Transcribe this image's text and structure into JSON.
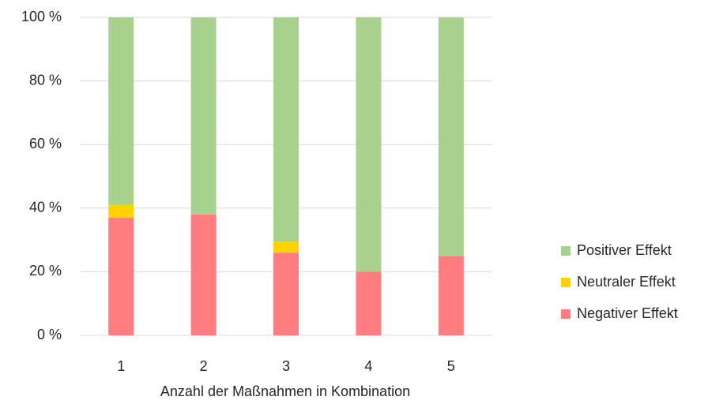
{
  "chart_data": {
    "type": "stacked_bar",
    "x_label": "Anzahl der Maßnahmen in Kombination",
    "categories": [
      "1",
      "2",
      "3",
      "4",
      "5"
    ],
    "series": [
      {
        "name": "Negativer Effekt",
        "color": "#ff7c80",
        "values": [
          37,
          38,
          26,
          20,
          25
        ]
      },
      {
        "name": "Neutraler Effekt",
        "color": "#ffd200",
        "values": [
          4,
          0,
          3.5,
          0,
          0
        ]
      },
      {
        "name": "Positiver Effekt",
        "color": "#a9d18e",
        "values": [
          59,
          62,
          70.5,
          80,
          75
        ]
      }
    ],
    "ylim": [
      0,
      100
    ],
    "yticks": [
      {
        "value": 0,
        "label": "0 %"
      },
      {
        "value": 20,
        "label": "20 %"
      },
      {
        "value": 40,
        "label": "40 %"
      },
      {
        "value": 60,
        "label": "60 %"
      },
      {
        "value": 80,
        "label": "80 %"
      },
      {
        "value": 100,
        "label": "100 %"
      }
    ],
    "grid": true,
    "legend": "right"
  }
}
